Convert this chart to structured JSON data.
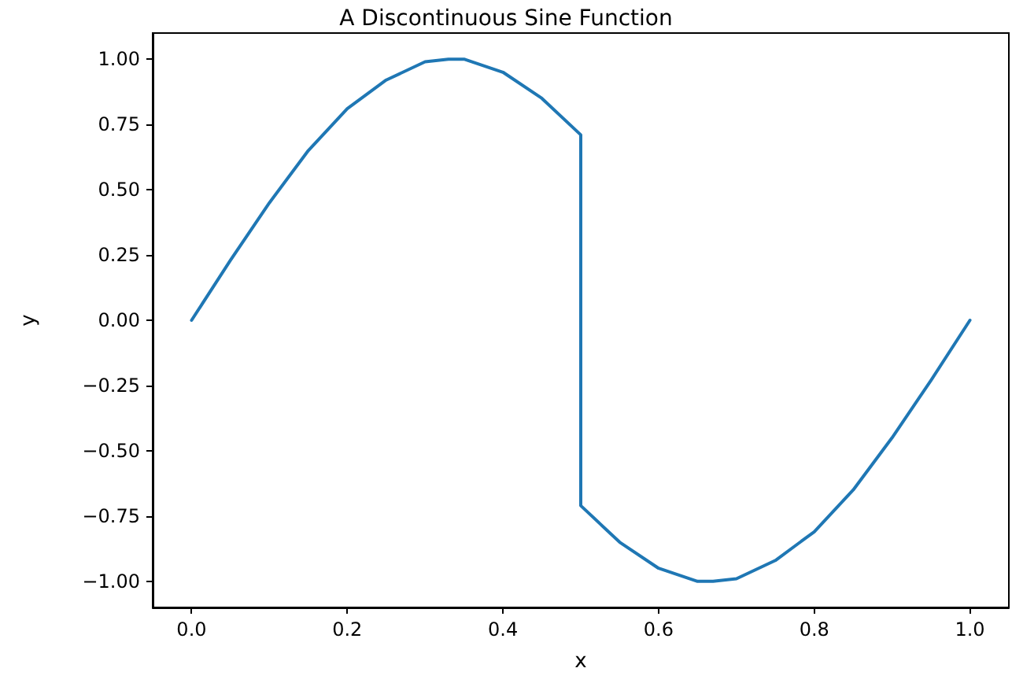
{
  "chart_data": {
    "type": "line",
    "title": "A Discontinuous Sine Function",
    "xlabel": "x",
    "ylabel": "y",
    "series": [
      {
        "color": "#1f77b4",
        "x": [
          0,
          0.05,
          0.1,
          0.15,
          0.2,
          0.25,
          0.3,
          0.33,
          0.35,
          0.4,
          0.45,
          0.5,
          0.5,
          0.55,
          0.6,
          0.65,
          0.67,
          0.7,
          0.75,
          0.8,
          0.85,
          0.9,
          0.95,
          1.0
        ],
        "values": [
          0,
          0.23,
          0.45,
          0.65,
          0.81,
          0.92,
          0.99,
          1.0,
          1.0,
          0.95,
          0.85,
          0.71,
          -0.71,
          -0.85,
          -0.95,
          -1.0,
          -1.0,
          -0.99,
          -0.92,
          -0.81,
          -0.65,
          -0.45,
          -0.23,
          0
        ]
      }
    ],
    "xlim": [
      -0.05,
      1.05
    ],
    "ylim": [
      -1.1,
      1.1
    ],
    "xticks": [
      {
        "value": 0,
        "label": "0.0"
      },
      {
        "value": 0.2,
        "label": "0.2"
      },
      {
        "value": 0.4,
        "label": "0.4"
      },
      {
        "value": 0.6,
        "label": "0.6"
      },
      {
        "value": 0.8,
        "label": "0.8"
      },
      {
        "value": 1,
        "label": "1.0"
      }
    ],
    "yticks": [
      {
        "value": -1,
        "label": "−1.00"
      },
      {
        "value": -0.75,
        "label": "−0.75"
      },
      {
        "value": -0.5,
        "label": "−0.50"
      },
      {
        "value": -0.25,
        "label": "−0.25"
      },
      {
        "value": 0,
        "label": "0.00"
      },
      {
        "value": 0.25,
        "label": "0.25"
      },
      {
        "value": 0.5,
        "label": "0.50"
      },
      {
        "value": 0.75,
        "label": "0.75"
      },
      {
        "value": 1,
        "label": "1.00"
      }
    ],
    "grid": false,
    "marker": "none",
    "line_style": "solid"
  }
}
